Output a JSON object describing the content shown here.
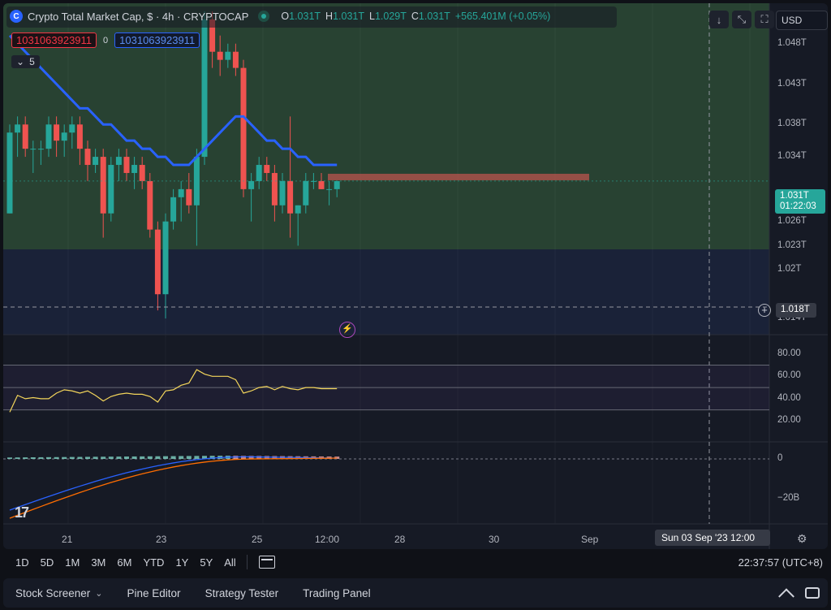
{
  "legend": {
    "symbol": "Crypto Total Market Cap, $ · 4h · CRYPTOCAP",
    "logo": "C",
    "ohlc": [
      {
        "key": "O",
        "value": "1.031T"
      },
      {
        "key": "H",
        "value": "1.031T"
      },
      {
        "key": "L",
        "value": "1.029T"
      },
      {
        "key": "C",
        "value": "1.031T"
      }
    ],
    "change": "+565.401M (+0.05%)"
  },
  "price_tags": {
    "red": "1031063923911",
    "zero": "0",
    "blue": "1031063923911"
  },
  "collapse": {
    "count": "5"
  },
  "currency": "USD",
  "price_axis": [
    {
      "label": "1.048T",
      "value": 1.048
    },
    {
      "label": "1.043T",
      "value": 1.043
    },
    {
      "label": "1.038T",
      "value": 1.038
    },
    {
      "label": "1.034T",
      "value": 1.034
    },
    {
      "label": "1.026T",
      "value": 1.026
    },
    {
      "label": "1.023T",
      "value": 1.023
    },
    {
      "label": "1.02T",
      "value": 1.02
    },
    {
      "label": "1.014T",
      "value": 1.014
    }
  ],
  "last_price": {
    "price": "1.031T",
    "countdown": "01:22:03"
  },
  "crosshair": {
    "price": "1.018T",
    "time": "Sun 03 Sep '23   12:00"
  },
  "rsi_axis": [
    "80.00",
    "60.00",
    "40.00",
    "20.00"
  ],
  "macd_axis": [
    "0",
    "−20B"
  ],
  "time_axis": [
    "21",
    "23",
    "25",
    "12:00",
    "28",
    "30",
    "Sep"
  ],
  "range_buttons": [
    "1D",
    "5D",
    "1M",
    "3M",
    "6M",
    "YTD",
    "1Y",
    "5Y",
    "All"
  ],
  "clock": "22:37:57 (UTC+8)",
  "bottom_tabs": [
    "Stock Screener",
    "Pine Editor",
    "Strategy Tester",
    "Trading Panel"
  ],
  "colors": {
    "up": "#26a69a",
    "down": "#ef5350",
    "ma": "#2962ff",
    "rsi": "#f3d55b",
    "bg": "#161a25"
  },
  "chart_data": {
    "type": "candlestick",
    "symbol": "CRYPTOCAP",
    "interval": "4h",
    "y_range": [
      1.012,
      1.053
    ],
    "candles": [
      {
        "o": 1.027,
        "h": 1.038,
        "l": 1.027,
        "c": 1.037
      },
      {
        "o": 1.037,
        "h": 1.039,
        "l": 1.034,
        "c": 1.038
      },
      {
        "o": 1.038,
        "h": 1.039,
        "l": 1.034,
        "c": 1.035
      },
      {
        "o": 1.035,
        "h": 1.036,
        "l": 1.032,
        "c": 1.035
      },
      {
        "o": 1.035,
        "h": 1.036,
        "l": 1.033,
        "c": 1.035
      },
      {
        "o": 1.035,
        "h": 1.039,
        "l": 1.034,
        "c": 1.038
      },
      {
        "o": 1.038,
        "h": 1.039,
        "l": 1.034,
        "c": 1.036
      },
      {
        "o": 1.036,
        "h": 1.038,
        "l": 1.034,
        "c": 1.037
      },
      {
        "o": 1.037,
        "h": 1.039,
        "l": 1.035,
        "c": 1.038
      },
      {
        "o": 1.038,
        "h": 1.039,
        "l": 1.033,
        "c": 1.035
      },
      {
        "o": 1.035,
        "h": 1.036,
        "l": 1.031,
        "c": 1.033
      },
      {
        "o": 1.033,
        "h": 1.035,
        "l": 1.032,
        "c": 1.034
      },
      {
        "o": 1.034,
        "h": 1.035,
        "l": 1.024,
        "c": 1.027
      },
      {
        "o": 1.027,
        "h": 1.034,
        "l": 1.026,
        "c": 1.033
      },
      {
        "o": 1.033,
        "h": 1.035,
        "l": 1.031,
        "c": 1.034
      },
      {
        "o": 1.034,
        "h": 1.035,
        "l": 1.031,
        "c": 1.032
      },
      {
        "o": 1.032,
        "h": 1.034,
        "l": 1.03,
        "c": 1.033
      },
      {
        "o": 1.033,
        "h": 1.034,
        "l": 1.03,
        "c": 1.031
      },
      {
        "o": 1.031,
        "h": 1.032,
        "l": 1.024,
        "c": 1.025
      },
      {
        "o": 1.025,
        "h": 1.026,
        "l": 1.015,
        "c": 1.017
      },
      {
        "o": 1.017,
        "h": 1.027,
        "l": 1.014,
        "c": 1.026
      },
      {
        "o": 1.026,
        "h": 1.03,
        "l": 1.025,
        "c": 1.029
      },
      {
        "o": 1.029,
        "h": 1.031,
        "l": 1.026,
        "c": 1.03
      },
      {
        "o": 1.03,
        "h": 1.032,
        "l": 1.027,
        "c": 1.028
      },
      {
        "o": 1.028,
        "h": 1.035,
        "l": 1.023,
        "c": 1.034
      },
      {
        "o": 1.034,
        "h": 1.052,
        "l": 1.033,
        "c": 1.051
      },
      {
        "o": 1.051,
        "h": 1.052,
        "l": 1.045,
        "c": 1.047
      },
      {
        "o": 1.047,
        "h": 1.049,
        "l": 1.044,
        "c": 1.046
      },
      {
        "o": 1.046,
        "h": 1.048,
        "l": 1.045,
        "c": 1.047
      },
      {
        "o": 1.047,
        "h": 1.048,
        "l": 1.044,
        "c": 1.045
      },
      {
        "o": 1.045,
        "h": 1.046,
        "l": 1.029,
        "c": 1.03
      },
      {
        "o": 1.03,
        "h": 1.032,
        "l": 1.026,
        "c": 1.031
      },
      {
        "o": 1.031,
        "h": 1.034,
        "l": 1.03,
        "c": 1.033
      },
      {
        "o": 1.033,
        "h": 1.034,
        "l": 1.031,
        "c": 1.032
      },
      {
        "o": 1.032,
        "h": 1.033,
        "l": 1.026,
        "c": 1.028
      },
      {
        "o": 1.028,
        "h": 1.032,
        "l": 1.027,
        "c": 1.031
      },
      {
        "o": 1.031,
        "h": 1.039,
        "l": 1.024,
        "c": 1.027
      },
      {
        "o": 1.027,
        "h": 1.028,
        "l": 1.023,
        "c": 1.028
      },
      {
        "o": 1.028,
        "h": 1.032,
        "l": 1.027,
        "c": 1.031
      },
      {
        "o": 1.031,
        "h": 1.032,
        "l": 1.03,
        "c": 1.031
      },
      {
        "o": 1.031,
        "h": 1.032,
        "l": 1.03,
        "c": 1.03
      },
      {
        "o": 1.03,
        "h": 1.031,
        "l": 1.028,
        "c": 1.03
      },
      {
        "o": 1.03,
        "h": 1.031,
        "l": 1.029,
        "c": 1.031
      }
    ],
    "ma": [
      1.049,
      1.048,
      1.047,
      1.046,
      1.045,
      1.044,
      1.043,
      1.042,
      1.041,
      1.04,
      1.04,
      1.039,
      1.038,
      1.038,
      1.037,
      1.036,
      1.036,
      1.035,
      1.035,
      1.034,
      1.034,
      1.033,
      1.033,
      1.033,
      1.034,
      1.035,
      1.036,
      1.037,
      1.038,
      1.039,
      1.039,
      1.038,
      1.037,
      1.036,
      1.036,
      1.035,
      1.035,
      1.034,
      1.034,
      1.033,
      1.033,
      1.033,
      1.033
    ],
    "rsi": [
      28,
      43,
      40,
      41,
      40,
      40,
      45,
      48,
      47,
      45,
      47,
      43,
      38,
      42,
      44,
      45,
      44,
      44,
      42,
      37,
      47,
      48,
      52,
      54,
      66,
      62,
      60,
      60,
      60,
      57,
      45,
      47,
      50,
      51,
      48,
      51,
      49,
      48,
      50,
      50,
      49,
      49,
      49
    ],
    "rsi_bands": [
      70,
      50,
      30
    ]
  }
}
